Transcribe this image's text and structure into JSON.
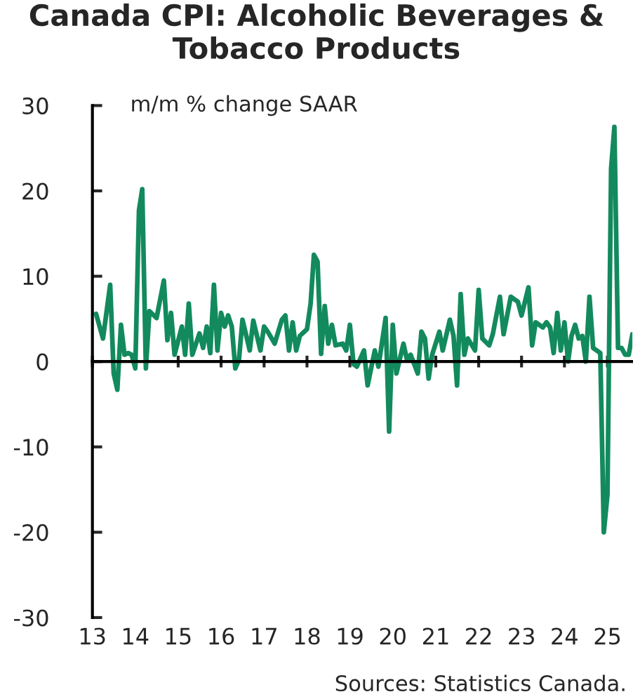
{
  "chart_data": {
    "type": "line",
    "title": "Canada CPI: Alcoholic Beverages &\nTobacco Products",
    "ylabel": "m/m % change SAAR",
    "annotations": [
      "Sources: Statistics Canada."
    ],
    "x": [
      "2013-02",
      "2013-04",
      "2013-06",
      "2013-07",
      "2013-08",
      "2013-09",
      "2013-10",
      "2013-11",
      "2013-12",
      "2014-01",
      "2014-02",
      "2014-03",
      "2014-04",
      "2014-05",
      "2014-07",
      "2014-09",
      "2014-10",
      "2014-11",
      "2014-12",
      "2015-02",
      "2015-03",
      "2015-04",
      "2015-05",
      "2015-07",
      "2015-08",
      "2015-09",
      "2015-10",
      "2015-11",
      "2015-12",
      "2016-01",
      "2016-02",
      "2016-03",
      "2016-04",
      "2016-05",
      "2016-06",
      "2016-07",
      "2016-09",
      "2016-10",
      "2016-12",
      "2017-01",
      "2017-02",
      "2017-04",
      "2017-06",
      "2017-07",
      "2017-08",
      "2017-09",
      "2017-10",
      "2017-11",
      "2018-01",
      "2018-02",
      "2018-03",
      "2018-04",
      "2018-05",
      "2018-06",
      "2018-07",
      "2018-08",
      "2018-09",
      "2018-11",
      "2018-12",
      "2019-01",
      "2019-02",
      "2019-03",
      "2019-05",
      "2019-06",
      "2019-08",
      "2019-09",
      "2019-11",
      "2019-12",
      "2020-01",
      "2020-02",
      "2020-04",
      "2020-05",
      "2020-06",
      "2020-08",
      "2020-09",
      "2020-10",
      "2020-11",
      "2020-12",
      "2021-02",
      "2021-03",
      "2021-05",
      "2021-06",
      "2021-07",
      "2021-08",
      "2021-09",
      "2021-10",
      "2021-12",
      "2022-01",
      "2022-02",
      "2022-04",
      "2022-05",
      "2022-07",
      "2022-08",
      "2022-10",
      "2022-12",
      "2023-01",
      "2023-03",
      "2023-04",
      "2023-05",
      "2023-07",
      "2023-08",
      "2023-09",
      "2023-10",
      "2023-11",
      "2023-12",
      "2024-01",
      "2024-02",
      "2024-03",
      "2024-04",
      "2024-05",
      "2024-06",
      "2024-07",
      "2024-08",
      "2024-09",
      "2024-11",
      "2024-12",
      "2025-01",
      "2025-02",
      "2025-03",
      "2025-04",
      "2025-05",
      "2025-06",
      "2025-07",
      "2025-08"
    ],
    "series": [
      {
        "color": "#138a5e",
        "values": [
          5.6,
          2.7,
          9.0,
          -1.4,
          -3.3,
          4.3,
          0.8,
          1.0,
          0.8,
          -0.8,
          17.7,
          20.2,
          -0.8,
          5.9,
          5.1,
          9.5,
          2.5,
          5.7,
          0.8,
          4.1,
          0.8,
          6.8,
          0.8,
          3.3,
          1.6,
          4.1,
          1.0,
          9.0,
          1.3,
          5.7,
          4.1,
          5.4,
          4.1,
          -0.8,
          0.2,
          4.9,
          1.3,
          4.8,
          1.3,
          4.1,
          3.5,
          2.1,
          4.9,
          5.4,
          1.3,
          4.6,
          1.3,
          3.0,
          3.8,
          6.8,
          12.5,
          11.7,
          0.9,
          6.5,
          2.1,
          4.3,
          1.9,
          2.1,
          1.3,
          4.3,
          -0.3,
          -0.6,
          1.3,
          -2.8,
          1.3,
          -0.6,
          5.1,
          -8.2,
          4.3,
          -1.4,
          2.1,
          0.2,
          0.8,
          -1.4,
          3.5,
          2.7,
          -2.0,
          0.8,
          3.5,
          1.3,
          4.9,
          3.0,
          -2.8,
          7.9,
          0.8,
          2.7,
          1.3,
          8.4,
          2.7,
          1.9,
          3.2,
          7.6,
          3.2,
          7.6,
          7.0,
          5.4,
          8.7,
          1.9,
          4.6,
          4.0,
          4.6,
          4.0,
          1.0,
          5.7,
          1.3,
          4.6,
          0.0,
          3.0,
          4.3,
          2.7,
          3.0,
          0.0,
          7.6,
          1.6,
          1.0,
          -20.0,
          -15.6,
          22.6,
          27.5,
          1.6,
          1.6,
          0.8,
          0.8,
          3.2
        ]
      }
    ],
    "xlim": [
      "2013-01",
      "2025-08"
    ],
    "xticks": [
      {
        "value": "2013-01",
        "label": "13"
      },
      {
        "value": "2014-01",
        "label": "14"
      },
      {
        "value": "2015-01",
        "label": "15"
      },
      {
        "value": "2016-01",
        "label": "16"
      },
      {
        "value": "2017-01",
        "label": "17"
      },
      {
        "value": "2018-01",
        "label": "18"
      },
      {
        "value": "2019-01",
        "label": "19"
      },
      {
        "value": "2020-01",
        "label": "20"
      },
      {
        "value": "2021-01",
        "label": "21"
      },
      {
        "value": "2022-01",
        "label": "22"
      },
      {
        "value": "2023-01",
        "label": "23"
      },
      {
        "value": "2024-01",
        "label": "24"
      },
      {
        "value": "2025-01",
        "label": "25"
      }
    ],
    "ylim": [
      -30,
      30
    ],
    "yticks": [
      -30,
      -20,
      -10,
      0,
      10,
      20,
      30
    ],
    "line_style": "solid"
  }
}
